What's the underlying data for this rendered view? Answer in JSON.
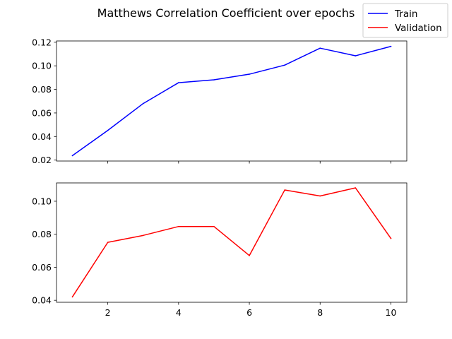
{
  "chart_data": {
    "type": "line",
    "title": "Matthews Correlation Coefficient over epochs",
    "legend": {
      "placement": "top-right",
      "entries": [
        {
          "label": "Train",
          "color": "#0000ff"
        },
        {
          "label": "Validation",
          "color": "#ff0000"
        }
      ]
    },
    "x": [
      1,
      2,
      3,
      4,
      5,
      6,
      7,
      8,
      9,
      10
    ],
    "x_ticks": [
      2,
      4,
      6,
      8,
      10
    ],
    "xlim": [
      0.55,
      10.45
    ],
    "grid": false,
    "panels": [
      {
        "series": [
          {
            "name": "Train",
            "color": "#0000ff",
            "values": [
              0.0238,
              0.0452,
              0.068,
              0.0857,
              0.0881,
              0.0929,
              0.1006,
              0.115,
              0.1085,
              0.1165
            ]
          }
        ],
        "ylim": [
          0.0192,
          0.1211
        ],
        "y_ticks": [
          0.02,
          0.04,
          0.06,
          0.08,
          0.1,
          0.12
        ],
        "y_tick_labels": [
          "0.02",
          "0.04",
          "0.06",
          "0.08",
          "0.10",
          "0.12"
        ],
        "show_x_tick_labels": false
      },
      {
        "series": [
          {
            "name": "Validation",
            "color": "#ff0000",
            "values": [
              0.0421,
              0.0751,
              0.0793,
              0.0847,
              0.0847,
              0.0671,
              0.1068,
              0.1032,
              0.1081,
              0.0775
            ]
          }
        ],
        "ylim": [
          0.0388,
          0.1111
        ],
        "y_ticks": [
          0.04,
          0.06,
          0.08,
          0.1
        ],
        "y_tick_labels": [
          "0.04",
          "0.06",
          "0.08",
          "0.10"
        ],
        "show_x_tick_labels": true
      }
    ]
  }
}
